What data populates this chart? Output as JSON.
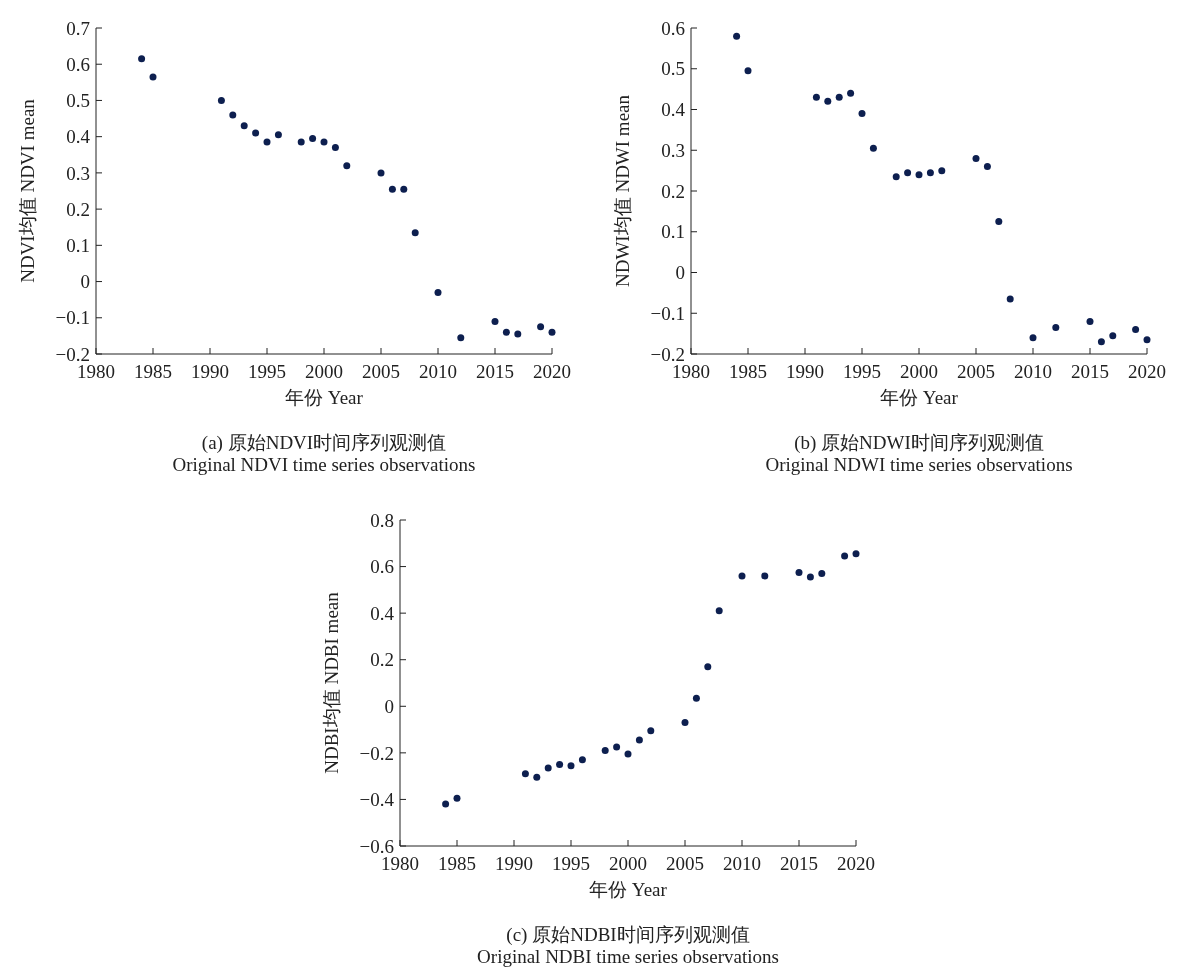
{
  "chart_data": [
    {
      "type": "scatter",
      "xlabel": "年份 Year",
      "ylabel": "NDVI均值 NDVI mean",
      "annotations": [
        "(a) 原始NDVI时间序列观测值",
        "Original NDVI time series observations"
      ],
      "marker": "circle",
      "xlim": [
        1980,
        2020
      ],
      "xticks": [
        1980,
        1985,
        1990,
        1995,
        2000,
        2005,
        2010,
        2015,
        2020
      ],
      "ylim": [
        -0.2,
        0.7
      ],
      "yticks": [
        -0.2,
        -0.1,
        0,
        0.1,
        0.2,
        0.3,
        0.4,
        0.5,
        0.6,
        0.7
      ],
      "series": [
        {
          "color": "#0d1f4f",
          "x": [
            1984,
            1985,
            1991,
            1992,
            1993,
            1994,
            1995,
            1996,
            1998,
            1999,
            2000,
            2001,
            2002,
            2005,
            2006,
            2007,
            2008,
            2010,
            2012,
            2015,
            2016,
            2017,
            2019,
            2020
          ],
          "values": [
            0.615,
            0.565,
            0.5,
            0.46,
            0.43,
            0.41,
            0.385,
            0.405,
            0.385,
            0.395,
            0.385,
            0.37,
            0.32,
            0.3,
            0.255,
            0.255,
            0.135,
            -0.03,
            -0.155,
            -0.11,
            -0.14,
            -0.145,
            -0.125,
            -0.14
          ]
        }
      ]
    },
    {
      "type": "scatter",
      "xlabel": "年份 Year",
      "ylabel": "NDWI均值 NDWI mean",
      "annotations": [
        "(b) 原始NDWI时间序列观测值",
        "Original NDWI time series observations"
      ],
      "marker": "circle",
      "xlim": [
        1980,
        2020
      ],
      "xticks": [
        1980,
        1985,
        1990,
        1995,
        2000,
        2005,
        2010,
        2015,
        2020
      ],
      "ylim": [
        -0.2,
        0.6
      ],
      "yticks": [
        -0.2,
        -0.1,
        0,
        0.1,
        0.2,
        0.3,
        0.4,
        0.5,
        0.6
      ],
      "series": [
        {
          "color": "#0d1f4f",
          "x": [
            1984,
            1985,
            1991,
            1992,
            1993,
            1994,
            1995,
            1996,
            1998,
            1999,
            2000,
            2001,
            2002,
            2005,
            2006,
            2007,
            2008,
            2010,
            2012,
            2015,
            2016,
            2017,
            2019,
            2020
          ],
          "values": [
            0.58,
            0.495,
            0.43,
            0.42,
            0.43,
            0.44,
            0.39,
            0.305,
            0.235,
            0.245,
            0.24,
            0.245,
            0.25,
            0.28,
            0.26,
            0.125,
            -0.065,
            -0.16,
            -0.135,
            -0.12,
            -0.17,
            -0.155,
            -0.14,
            -0.165
          ]
        }
      ]
    },
    {
      "type": "scatter",
      "xlabel": "年份 Year",
      "ylabel": "NDBI均值 NDBI mean",
      "annotations": [
        "(c) 原始NDBI时间序列观测值",
        "Original NDBI time series observations"
      ],
      "marker": "circle",
      "xlim": [
        1980,
        2020
      ],
      "xticks": [
        1980,
        1985,
        1990,
        1995,
        2000,
        2005,
        2010,
        2015,
        2020
      ],
      "ylim": [
        -0.6,
        0.8
      ],
      "yticks": [
        -0.6,
        -0.4,
        -0.2,
        0,
        0.2,
        0.4,
        0.6,
        0.8
      ],
      "series": [
        {
          "color": "#0d1f4f",
          "x": [
            1984,
            1985,
            1991,
            1992,
            1993,
            1994,
            1995,
            1996,
            1998,
            1999,
            2000,
            2001,
            2002,
            2005,
            2006,
            2007,
            2008,
            2010,
            2012,
            2015,
            2016,
            2017,
            2019,
            2020
          ],
          "values": [
            -0.42,
            -0.395,
            -0.29,
            -0.305,
            -0.265,
            -0.25,
            -0.255,
            -0.23,
            -0.19,
            -0.175,
            -0.205,
            -0.145,
            -0.105,
            -0.07,
            0.035,
            0.17,
            0.41,
            0.56,
            0.56,
            0.575,
            0.555,
            0.57,
            0.645,
            0.655
          ]
        }
      ]
    }
  ]
}
